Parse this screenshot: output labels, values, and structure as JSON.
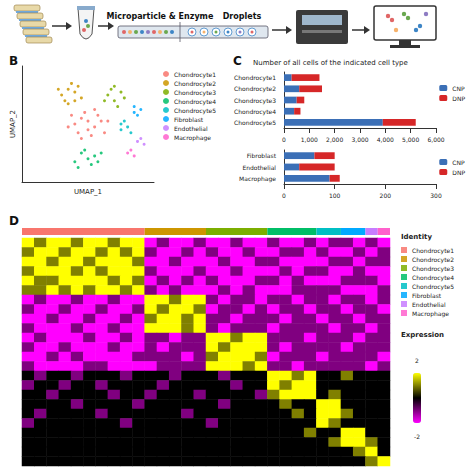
{
  "workflow": {
    "steps": [
      "Microparticle & Enzyme",
      "Droplets"
    ]
  },
  "chart_data": [
    {
      "panel": "B",
      "type": "scatter",
      "x_label": "UMAP_1",
      "y_label": "UMAP_2",
      "xlim": [
        -10,
        10
      ],
      "ylim": [
        -10,
        10
      ],
      "tick_labels": false,
      "grid": false,
      "legend": "right",
      "series": [
        {
          "name": "Chondrocyte1",
          "color": "#F8766D",
          "values": [
            [
              -2,
              0
            ],
            [
              -1,
              1
            ],
            [
              0,
              0.5
            ],
            [
              1,
              -0.5
            ],
            [
              2,
              0.5
            ],
            [
              -1.5,
              -1.5
            ],
            [
              0.5,
              -2
            ],
            [
              1.5,
              1.5
            ],
            [
              -0.5,
              2
            ],
            [
              2.5,
              -1.5
            ],
            [
              -2.5,
              1.5
            ],
            [
              0,
              -1
            ],
            [
              1,
              2.5
            ],
            [
              -1,
              -2.5
            ],
            [
              3,
              0.5
            ],
            [
              -3,
              -0.5
            ]
          ]
        },
        {
          "name": "Chondrocyte2",
          "color": "#CD9600",
          "values": [
            [
              -4,
              5
            ],
            [
              -3,
              6
            ],
            [
              -2,
              5.5
            ],
            [
              -3.5,
              4
            ],
            [
              -1.5,
              6.5
            ],
            [
              -2.5,
              7
            ],
            [
              -4.5,
              6
            ],
            [
              -1,
              4.5
            ],
            [
              -3,
              3.5
            ],
            [
              -2,
              4
            ]
          ]
        },
        {
          "name": "Chondrocyte3",
          "color": "#7CAE00",
          "values": [
            [
              3,
              5
            ],
            [
              4,
              4
            ],
            [
              5,
              5.5
            ],
            [
              3.5,
              6
            ],
            [
              4.5,
              3
            ],
            [
              2.5,
              4
            ],
            [
              5.5,
              4.5
            ],
            [
              4,
              6.5
            ]
          ]
        },
        {
          "name": "Chondrocyte4",
          "color": "#00BE67",
          "values": [
            [
              -1,
              -5
            ],
            [
              0,
              -6
            ],
            [
              1,
              -5.5
            ],
            [
              -2,
              -6.5
            ],
            [
              0.5,
              -7
            ],
            [
              -0.5,
              -4.5
            ],
            [
              1.5,
              -6.5
            ],
            [
              -1.5,
              -7.5
            ],
            [
              2,
              -5
            ]
          ]
        },
        {
          "name": "Chondrocyte5",
          "color": "#00BFC4",
          "values": [
            [
              5,
              -1
            ],
            [
              6,
              -0.5
            ],
            [
              5.5,
              0.5
            ],
            [
              6.5,
              -1.5
            ],
            [
              5,
              0
            ]
          ]
        },
        {
          "name": "Fibroblast",
          "color": "#00A9FF",
          "values": [
            [
              7,
              2
            ],
            [
              7.5,
              1.5
            ],
            [
              8,
              2.5
            ],
            [
              7,
              3
            ]
          ]
        },
        {
          "name": "Endothelial",
          "color": "#C77CFF",
          "values": [
            [
              7.5,
              -3
            ],
            [
              8,
              -2.5
            ],
            [
              8.5,
              -3.5
            ]
          ]
        },
        {
          "name": "Macrophage",
          "color": "#FF61CC",
          "values": [
            [
              6,
              -5
            ],
            [
              6.5,
              -4.5
            ],
            [
              7,
              -5.5
            ]
          ]
        }
      ]
    },
    {
      "panel": "C",
      "type": "bar",
      "title": "Number of all cells of the indicated cell type",
      "orientation": "horizontal",
      "stacked": true,
      "legend": "right",
      "grid": false,
      "categories": [
        "Chondrocyte1",
        "Chondrocyte2",
        "Chondrocyte3",
        "Chondrocyte4",
        "Chondrocyte5"
      ],
      "xlim": [
        0,
        6000
      ],
      "xticks": [
        0,
        1000,
        2000,
        3000,
        4000,
        5000,
        6000
      ],
      "series": [
        {
          "name": "CNP",
          "color": "#3b6fb6",
          "values": [
            300,
            600,
            500,
            400,
            3900
          ]
        },
        {
          "name": "DNP",
          "color": "#d62728",
          "values": [
            1100,
            900,
            300,
            250,
            1300
          ]
        }
      ]
    },
    {
      "type": "bar",
      "orientation": "horizontal",
      "stacked": true,
      "legend": "right",
      "grid": false,
      "categories": [
        "Fibroblast",
        "Endothelial",
        "Macrophage"
      ],
      "xlim": [
        0,
        300
      ],
      "xticks": [
        0,
        100,
        200,
        300
      ],
      "series": [
        {
          "name": "CNP",
          "color": "#3b6fb6",
          "values": [
            60,
            30,
            90
          ]
        },
        {
          "name": "DNP",
          "color": "#d62728",
          "values": [
            40,
            70,
            20
          ]
        }
      ]
    },
    {
      "panel": "D",
      "type": "heatmap",
      "tick_labels": false,
      "legend": "right",
      "identity_title": "Identity",
      "identity": [
        {
          "name": "Chondrocyte1",
          "color": "#F8766D",
          "count": 10
        },
        {
          "name": "Chondrocyte2",
          "color": "#CD9600",
          "count": 5
        },
        {
          "name": "Chondrocyte3",
          "color": "#7CAE00",
          "count": 5
        },
        {
          "name": "Chondrocyte4",
          "color": "#00BE67",
          "count": 4
        },
        {
          "name": "Chondrocyte5",
          "color": "#00BFC4",
          "count": 2
        },
        {
          "name": "Fibroblast",
          "color": "#00A9FF",
          "count": 2
        },
        {
          "name": "Endothelial",
          "color": "#C77CFF",
          "count": 1
        },
        {
          "name": "Macrophage",
          "color": "#FF61CC",
          "count": 1
        }
      ],
      "colorbar_title": "Expression",
      "colorbar_range": [
        -2,
        2
      ],
      "cells": [
        [
          2,
          1,
          2,
          2,
          1,
          2,
          2,
          1,
          2,
          2,
          -2,
          -1,
          -2,
          -2,
          -1,
          -2,
          -2,
          -1,
          -2,
          -2,
          -1,
          -2,
          -2,
          -1,
          -2,
          -1,
          -1,
          -2,
          -1,
          -2
        ],
        [
          1,
          2,
          2,
          1,
          2,
          2,
          1,
          2,
          1,
          2,
          -1,
          -2,
          -2,
          -1,
          -2,
          -1,
          -2,
          -2,
          -1,
          -2,
          -2,
          -1,
          -1,
          -2,
          -1,
          -2,
          -2,
          -1,
          -2,
          -1
        ],
        [
          2,
          2,
          1,
          2,
          2,
          1,
          2,
          2,
          2,
          1,
          -2,
          -2,
          -1,
          -2,
          -2,
          -2,
          -1,
          -2,
          -2,
          -1,
          -1,
          -2,
          -2,
          -2,
          -2,
          -1,
          -1,
          -2,
          -1,
          -1
        ],
        [
          1,
          2,
          2,
          2,
          1,
          2,
          1,
          2,
          2,
          2,
          -1,
          -2,
          -2,
          -2,
          -1,
          -2,
          -2,
          -1,
          -2,
          -2,
          -2,
          -1,
          -2,
          -1,
          -1,
          -2,
          -2,
          -1,
          -2,
          -2
        ],
        [
          2,
          1,
          1,
          2,
          2,
          2,
          2,
          1,
          2,
          1,
          -2,
          -1,
          -2,
          -1,
          -2,
          -1,
          -2,
          -2,
          -2,
          -1,
          -1,
          -2,
          -1,
          -2,
          -2,
          -2,
          -1,
          -1,
          -1,
          -2
        ],
        [
          1,
          1,
          2,
          1,
          2,
          1,
          2,
          2,
          1,
          2,
          -1,
          -2,
          -1,
          -2,
          -2,
          -2,
          -1,
          -2,
          -1,
          -2,
          -2,
          -2,
          -1,
          -1,
          -1,
          -1,
          -2,
          -2,
          -2,
          -1
        ],
        [
          -2,
          -1,
          -2,
          -2,
          -1,
          -2,
          -2,
          -1,
          -2,
          -2,
          2,
          2,
          1,
          2,
          2,
          -1,
          -2,
          -1,
          -1,
          -2,
          -1,
          -1,
          -2,
          -1,
          -1,
          -2,
          -1,
          -1,
          -2,
          -1
        ],
        [
          -1,
          -2,
          -2,
          -1,
          -2,
          -2,
          -1,
          -2,
          -2,
          -1,
          2,
          1,
          2,
          2,
          1,
          -2,
          -1,
          -1,
          -2,
          -1,
          -2,
          -1,
          -1,
          -2,
          -1,
          -1,
          -2,
          -1,
          -1,
          -2
        ],
        [
          -2,
          -2,
          -1,
          -2,
          -2,
          -1,
          -2,
          -2,
          -1,
          -2,
          1,
          2,
          2,
          1,
          2,
          -1,
          -1,
          -2,
          -1,
          -1,
          -1,
          -2,
          -1,
          -1,
          -2,
          -1,
          -1,
          -2,
          -1,
          -1
        ],
        [
          -1,
          -2,
          -2,
          -2,
          -1,
          -2,
          -2,
          -1,
          -2,
          -2,
          2,
          2,
          2,
          1,
          2,
          -1,
          -2,
          -1,
          -1,
          -1,
          -2,
          -1,
          -1,
          -1,
          -1,
          -2,
          -1,
          -1,
          -2,
          -1
        ],
        [
          -2,
          -1,
          -2,
          -2,
          -2,
          -1,
          -2,
          -2,
          -1,
          -2,
          -1,
          -1,
          -2,
          -1,
          -1,
          2,
          2,
          1,
          2,
          2,
          -1,
          -1,
          -1,
          -2,
          -1,
          -1,
          -1,
          -2,
          -1,
          -1
        ],
        [
          -1,
          -2,
          -2,
          -1,
          -2,
          -2,
          -2,
          -1,
          -2,
          -2,
          -1,
          -2,
          -1,
          -1,
          -1,
          2,
          1,
          2,
          2,
          2,
          -1,
          -2,
          -1,
          -1,
          -1,
          -1,
          -2,
          -1,
          -1,
          -1
        ],
        [
          -2,
          -2,
          -1,
          -2,
          -1,
          -2,
          -2,
          -2,
          -2,
          -1,
          -1,
          -1,
          -1,
          -2,
          -1,
          1,
          2,
          2,
          2,
          1,
          -2,
          -1,
          -1,
          -1,
          -2,
          -1,
          -1,
          -1,
          -1,
          -2
        ],
        [
          -1,
          -2,
          -2,
          -2,
          -2,
          -1,
          -1,
          -2,
          -2,
          -2,
          -2,
          -1,
          -1,
          -1,
          -1,
          2,
          2,
          2,
          1,
          2,
          -1,
          -1,
          -2,
          -1,
          -1,
          -1,
          -1,
          -1,
          -2,
          -1
        ],
        [
          0,
          -1,
          0,
          0,
          -1,
          0,
          0,
          0,
          -1,
          0,
          0,
          0,
          -1,
          0,
          0,
          0,
          -1,
          0,
          0,
          0,
          2,
          2,
          1,
          2,
          0,
          0,
          1,
          0,
          0,
          0
        ],
        [
          -1,
          0,
          0,
          -1,
          0,
          0,
          -1,
          0,
          0,
          0,
          0,
          -1,
          0,
          0,
          0,
          0,
          0,
          -1,
          0,
          0,
          2,
          1,
          2,
          2,
          0,
          0,
          0,
          0,
          0,
          0
        ],
        [
          0,
          0,
          -1,
          0,
          0,
          0,
          0,
          -1,
          0,
          0,
          -1,
          0,
          0,
          0,
          -1,
          0,
          0,
          0,
          0,
          -1,
          1,
          2,
          2,
          2,
          0,
          1,
          0,
          0,
          0,
          0
        ],
        [
          0,
          0,
          0,
          0,
          -1,
          0,
          0,
          0,
          0,
          -1,
          0,
          0,
          0,
          0,
          0,
          0,
          -1,
          0,
          0,
          0,
          0,
          1,
          0,
          0,
          2,
          2,
          0,
          0,
          0,
          0
        ],
        [
          0,
          -1,
          0,
          0,
          0,
          0,
          -1,
          0,
          0,
          0,
          0,
          0,
          0,
          -1,
          0,
          0,
          0,
          0,
          0,
          0,
          0,
          0,
          1,
          0,
          2,
          2,
          1,
          0,
          0,
          0
        ],
        [
          -1,
          0,
          0,
          0,
          0,
          0,
          0,
          0,
          -1,
          0,
          0,
          0,
          0,
          0,
          0,
          -1,
          0,
          0,
          0,
          0,
          0,
          0,
          0,
          0,
          2,
          1,
          0,
          0,
          0,
          0
        ],
        [
          0,
          0,
          0,
          0,
          0,
          0,
          0,
          0,
          0,
          0,
          0,
          0,
          0,
          0,
          0,
          0,
          0,
          0,
          0,
          0,
          0,
          0,
          0,
          1,
          0,
          0,
          2,
          2,
          0,
          0
        ],
        [
          0,
          0,
          0,
          0,
          0,
          0,
          0,
          0,
          0,
          0,
          0,
          0,
          0,
          0,
          0,
          0,
          0,
          0,
          0,
          0,
          0,
          0,
          0,
          0,
          0,
          1,
          2,
          2,
          1,
          0
        ],
        [
          0,
          0,
          0,
          0,
          0,
          0,
          0,
          0,
          0,
          0,
          0,
          0,
          0,
          0,
          0,
          0,
          0,
          0,
          0,
          0,
          0,
          0,
          0,
          0,
          0,
          0,
          0,
          1,
          2,
          0
        ],
        [
          0,
          0,
          0,
          0,
          0,
          0,
          0,
          0,
          0,
          0,
          0,
          0,
          0,
          0,
          0,
          0,
          0,
          0,
          0,
          0,
          0,
          0,
          0,
          0,
          0,
          0,
          0,
          0,
          1,
          2
        ]
      ]
    }
  ]
}
